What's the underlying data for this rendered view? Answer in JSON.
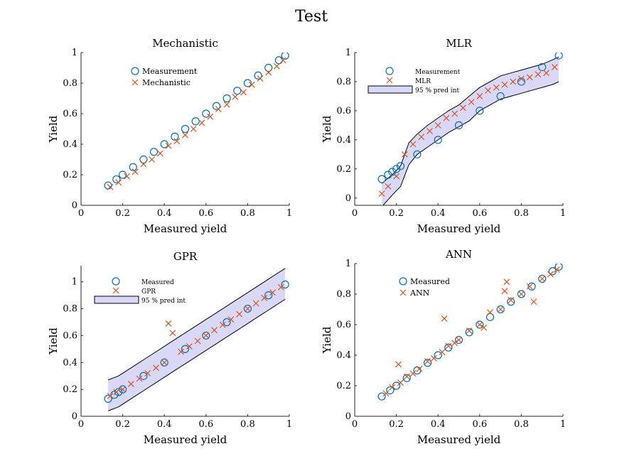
{
  "figure": {
    "title": "Test"
  },
  "colors": {
    "measurement": "#0072BD",
    "prediction": "#D95319",
    "interval_fill": "#D9D9F7",
    "interval_edge": "#000000"
  },
  "chart_data": [
    {
      "id": "mechanistic",
      "type": "scatter",
      "title": "Mechanistic",
      "xlabel": "Measured yield",
      "ylabel": "Yield",
      "xlim": [
        0,
        1
      ],
      "ylim": [
        0,
        1
      ],
      "xticks": [
        0,
        0.2,
        0.4,
        0.6,
        0.8,
        1
      ],
      "yticks": [
        0,
        0.2,
        0.4,
        0.6,
        0.8,
        1
      ],
      "legend": {
        "position": "top-left",
        "entries": [
          "Measurement",
          "Mechanistic"
        ]
      },
      "has_interval": false,
      "series": [
        {
          "name": "Measurement",
          "marker": "circle",
          "x": [
            0.13,
            0.17,
            0.2,
            0.25,
            0.3,
            0.35,
            0.4,
            0.45,
            0.5,
            0.55,
            0.6,
            0.65,
            0.7,
            0.75,
            0.8,
            0.85,
            0.9,
            0.95,
            0.98
          ],
          "y": [
            0.13,
            0.17,
            0.2,
            0.25,
            0.3,
            0.35,
            0.4,
            0.45,
            0.5,
            0.55,
            0.6,
            0.65,
            0.7,
            0.75,
            0.8,
            0.85,
            0.9,
            0.95,
            0.98
          ]
        },
        {
          "name": "Mechanistic",
          "marker": "x",
          "x": [
            0.14,
            0.18,
            0.22,
            0.26,
            0.3,
            0.34,
            0.38,
            0.42,
            0.46,
            0.5,
            0.54,
            0.58,
            0.62,
            0.66,
            0.7,
            0.74,
            0.78,
            0.82,
            0.86,
            0.9,
            0.94,
            0.97
          ],
          "y": [
            0.12,
            0.15,
            0.19,
            0.22,
            0.27,
            0.3,
            0.34,
            0.39,
            0.42,
            0.46,
            0.5,
            0.54,
            0.58,
            0.63,
            0.66,
            0.71,
            0.74,
            0.79,
            0.83,
            0.87,
            0.91,
            0.95
          ]
        }
      ]
    },
    {
      "id": "mlr",
      "type": "scatter",
      "title": "MLR",
      "xlabel": "Measured yield",
      "ylabel": "Yield",
      "xlim": [
        0,
        1
      ],
      "ylim": [
        -0.05,
        1
      ],
      "xticks": [
        0,
        0.2,
        0.4,
        0.6,
        0.8,
        1
      ],
      "yticks": [
        0,
        0.2,
        0.4,
        0.6,
        0.8,
        1
      ],
      "legend": {
        "position": "top-left",
        "entries": [
          "Measurement",
          "MLR",
          "95 % pred int"
        ]
      },
      "has_interval": true,
      "interval": {
        "x": [
          0.13,
          0.18,
          0.22,
          0.26,
          0.3,
          0.35,
          0.4,
          0.45,
          0.5,
          0.55,
          0.6,
          0.65,
          0.7,
          0.75,
          0.8,
          0.85,
          0.9,
          0.95,
          0.98
        ],
        "lower": [
          -0.06,
          0.02,
          0.08,
          0.23,
          0.3,
          0.35,
          0.4,
          0.45,
          0.49,
          0.53,
          0.6,
          0.64,
          0.68,
          0.7,
          0.72,
          0.74,
          0.76,
          0.78,
          0.8
        ],
        "upper": [
          0.1,
          0.16,
          0.22,
          0.38,
          0.44,
          0.5,
          0.55,
          0.6,
          0.64,
          0.7,
          0.76,
          0.8,
          0.84,
          0.86,
          0.88,
          0.9,
          0.92,
          0.95,
          0.97
        ]
      },
      "series": [
        {
          "name": "Measurement",
          "marker": "circle",
          "x": [
            0.13,
            0.16,
            0.18,
            0.2,
            0.22,
            0.3,
            0.4,
            0.5,
            0.6,
            0.7,
            0.8,
            0.9,
            0.98
          ],
          "y": [
            0.13,
            0.16,
            0.18,
            0.2,
            0.22,
            0.3,
            0.4,
            0.5,
            0.6,
            0.7,
            0.8,
            0.9,
            0.98
          ]
        },
        {
          "name": "MLR",
          "marker": "x",
          "x": [
            0.13,
            0.16,
            0.2,
            0.24,
            0.28,
            0.32,
            0.36,
            0.4,
            0.44,
            0.48,
            0.52,
            0.56,
            0.6,
            0.64,
            0.68,
            0.72,
            0.76,
            0.8,
            0.84,
            0.88,
            0.92,
            0.96
          ],
          "y": [
            0.03,
            0.08,
            0.15,
            0.3,
            0.37,
            0.42,
            0.46,
            0.5,
            0.55,
            0.58,
            0.62,
            0.66,
            0.7,
            0.74,
            0.76,
            0.78,
            0.8,
            0.82,
            0.83,
            0.85,
            0.86,
            0.9
          ]
        }
      ]
    },
    {
      "id": "gpr",
      "type": "scatter",
      "title": "GPR",
      "xlabel": "Measured yield",
      "ylabel": "Yield",
      "xlim": [
        0,
        1
      ],
      "ylim": [
        0,
        1.12
      ],
      "xticks": [
        0,
        0.2,
        0.4,
        0.6,
        0.8,
        1
      ],
      "yticks": [
        0,
        0.2,
        0.4,
        0.6,
        0.8,
        1
      ],
      "legend": {
        "position": "top-left",
        "entries": [
          "Measured",
          "GPR",
          "95 % pred int"
        ]
      },
      "has_interval": true,
      "interval": {
        "x": [
          0.13,
          0.18,
          0.22,
          0.26,
          0.3,
          0.35,
          0.4,
          0.45,
          0.5,
          0.55,
          0.6,
          0.65,
          0.7,
          0.75,
          0.8,
          0.85,
          0.9,
          0.95,
          0.98
        ],
        "lower": [
          0.04,
          0.07,
          0.11,
          0.15,
          0.19,
          0.24,
          0.29,
          0.34,
          0.39,
          0.44,
          0.49,
          0.54,
          0.59,
          0.64,
          0.69,
          0.74,
          0.79,
          0.84,
          0.87
        ],
        "upper": [
          0.27,
          0.3,
          0.34,
          0.38,
          0.42,
          0.47,
          0.52,
          0.57,
          0.62,
          0.67,
          0.72,
          0.77,
          0.82,
          0.87,
          0.92,
          0.97,
          1.02,
          1.07,
          1.1
        ]
      },
      "series": [
        {
          "name": "Measured",
          "marker": "circle",
          "x": [
            0.13,
            0.16,
            0.18,
            0.2,
            0.3,
            0.4,
            0.5,
            0.6,
            0.7,
            0.8,
            0.9,
            0.98
          ],
          "y": [
            0.13,
            0.16,
            0.18,
            0.2,
            0.3,
            0.4,
            0.5,
            0.6,
            0.7,
            0.8,
            0.9,
            0.98
          ]
        },
        {
          "name": "GPR",
          "marker": "x",
          "x": [
            0.14,
            0.17,
            0.2,
            0.24,
            0.28,
            0.32,
            0.36,
            0.4,
            0.42,
            0.44,
            0.48,
            0.52,
            0.56,
            0.6,
            0.64,
            0.68,
            0.72,
            0.76,
            0.8,
            0.84,
            0.88,
            0.92,
            0.96
          ],
          "y": [
            0.15,
            0.18,
            0.2,
            0.24,
            0.28,
            0.32,
            0.36,
            0.4,
            0.69,
            0.62,
            0.48,
            0.52,
            0.56,
            0.6,
            0.64,
            0.68,
            0.72,
            0.76,
            0.8,
            0.84,
            0.88,
            0.92,
            0.96
          ]
        }
      ]
    },
    {
      "id": "ann",
      "type": "scatter",
      "title": "ANN",
      "xlabel": "Measured yield",
      "ylabel": "Yield",
      "xlim": [
        0,
        1
      ],
      "ylim": [
        0,
        1
      ],
      "xticks": [
        0,
        0.2,
        0.4,
        0.6,
        0.8,
        1
      ],
      "yticks": [
        0,
        0.2,
        0.4,
        0.6,
        0.8,
        1
      ],
      "legend": {
        "position": "top-left",
        "entries": [
          "Measured",
          "ANN"
        ]
      },
      "has_interval": false,
      "series": [
        {
          "name": "Measured",
          "marker": "circle",
          "x": [
            0.13,
            0.17,
            0.2,
            0.25,
            0.3,
            0.35,
            0.4,
            0.45,
            0.5,
            0.55,
            0.6,
            0.65,
            0.7,
            0.75,
            0.8,
            0.85,
            0.9,
            0.95,
            0.98
          ],
          "y": [
            0.13,
            0.17,
            0.2,
            0.25,
            0.3,
            0.35,
            0.4,
            0.45,
            0.5,
            0.55,
            0.6,
            0.65,
            0.7,
            0.75,
            0.8,
            0.85,
            0.9,
            0.95,
            0.98
          ]
        },
        {
          "name": "ANN",
          "marker": "x",
          "x": [
            0.15,
            0.18,
            0.21,
            0.22,
            0.25,
            0.28,
            0.31,
            0.35,
            0.38,
            0.42,
            0.43,
            0.45,
            0.48,
            0.5,
            0.55,
            0.6,
            0.62,
            0.65,
            0.7,
            0.72,
            0.73,
            0.75,
            0.8,
            0.84,
            0.86,
            0.9,
            0.94,
            0.97
          ],
          "y": [
            0.15,
            0.19,
            0.34,
            0.22,
            0.26,
            0.28,
            0.31,
            0.36,
            0.38,
            0.42,
            0.64,
            0.46,
            0.48,
            0.5,
            0.56,
            0.6,
            0.58,
            0.68,
            0.7,
            0.82,
            0.88,
            0.76,
            0.8,
            0.85,
            0.75,
            0.9,
            0.93,
            0.96
          ]
        }
      ]
    }
  ]
}
